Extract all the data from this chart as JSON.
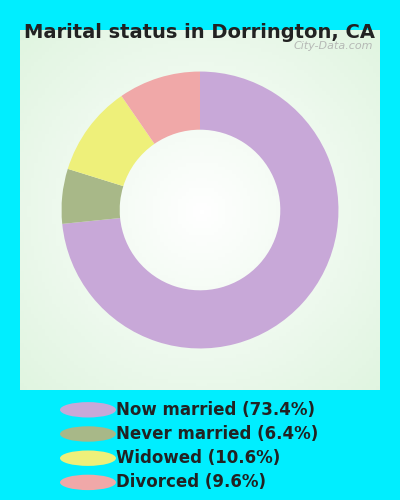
{
  "title": "Marital status in Dorrington, CA",
  "slices": [
    73.4,
    6.4,
    10.6,
    9.6
  ],
  "labels": [
    "Now married (73.4%)",
    "Never married (6.4%)",
    "Widowed (10.6%)",
    "Divorced (9.6%)"
  ],
  "colors": [
    "#c8a8d8",
    "#a8b888",
    "#eef07a",
    "#f0a8a8"
  ],
  "outer_bg": "#00eeff",
  "chart_bg_color": "#e8f5ee",
  "donut_width": 0.42,
  "title_fontsize": 14,
  "legend_fontsize": 12,
  "start_angle": 90,
  "watermark": "City-Data.com"
}
